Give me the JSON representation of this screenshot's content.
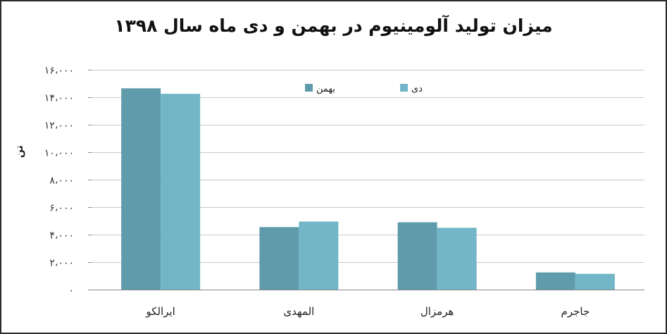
{
  "chart_data": {
    "type": "bar",
    "title": "میزان تولید آلومینیوم در بهمن و دی ماه سال ۱۳۹۸",
    "ylabel": "تن",
    "xlabel": "",
    "categories": [
      "جاجرم",
      "هرمزال",
      "المهدی",
      "ایرالکو"
    ],
    "series": [
      {
        "name": "بهمن",
        "values": [
          1250,
          4900,
          4550,
          14650
        ],
        "color": "#5f9bab"
      },
      {
        "name": "دی",
        "values": [
          1150,
          4500,
          4950,
          14250
        ],
        "color": "#72b6c8"
      }
    ],
    "ylim": [
      0,
      16000
    ],
    "yticks": [
      0,
      2000,
      4000,
      6000,
      8000,
      10000,
      12000,
      14000,
      16000
    ],
    "ytick_labels": [
      "۰",
      "۲،۰۰۰",
      "۴،۰۰۰",
      "۶،۰۰۰",
      "۸،۰۰۰",
      "۱۰،۰۰۰",
      "۱۲،۰۰۰",
      "۱۴،۰۰۰",
      "۱۶،۰۰۰"
    ],
    "grid": true,
    "legend_position": "top-center"
  }
}
